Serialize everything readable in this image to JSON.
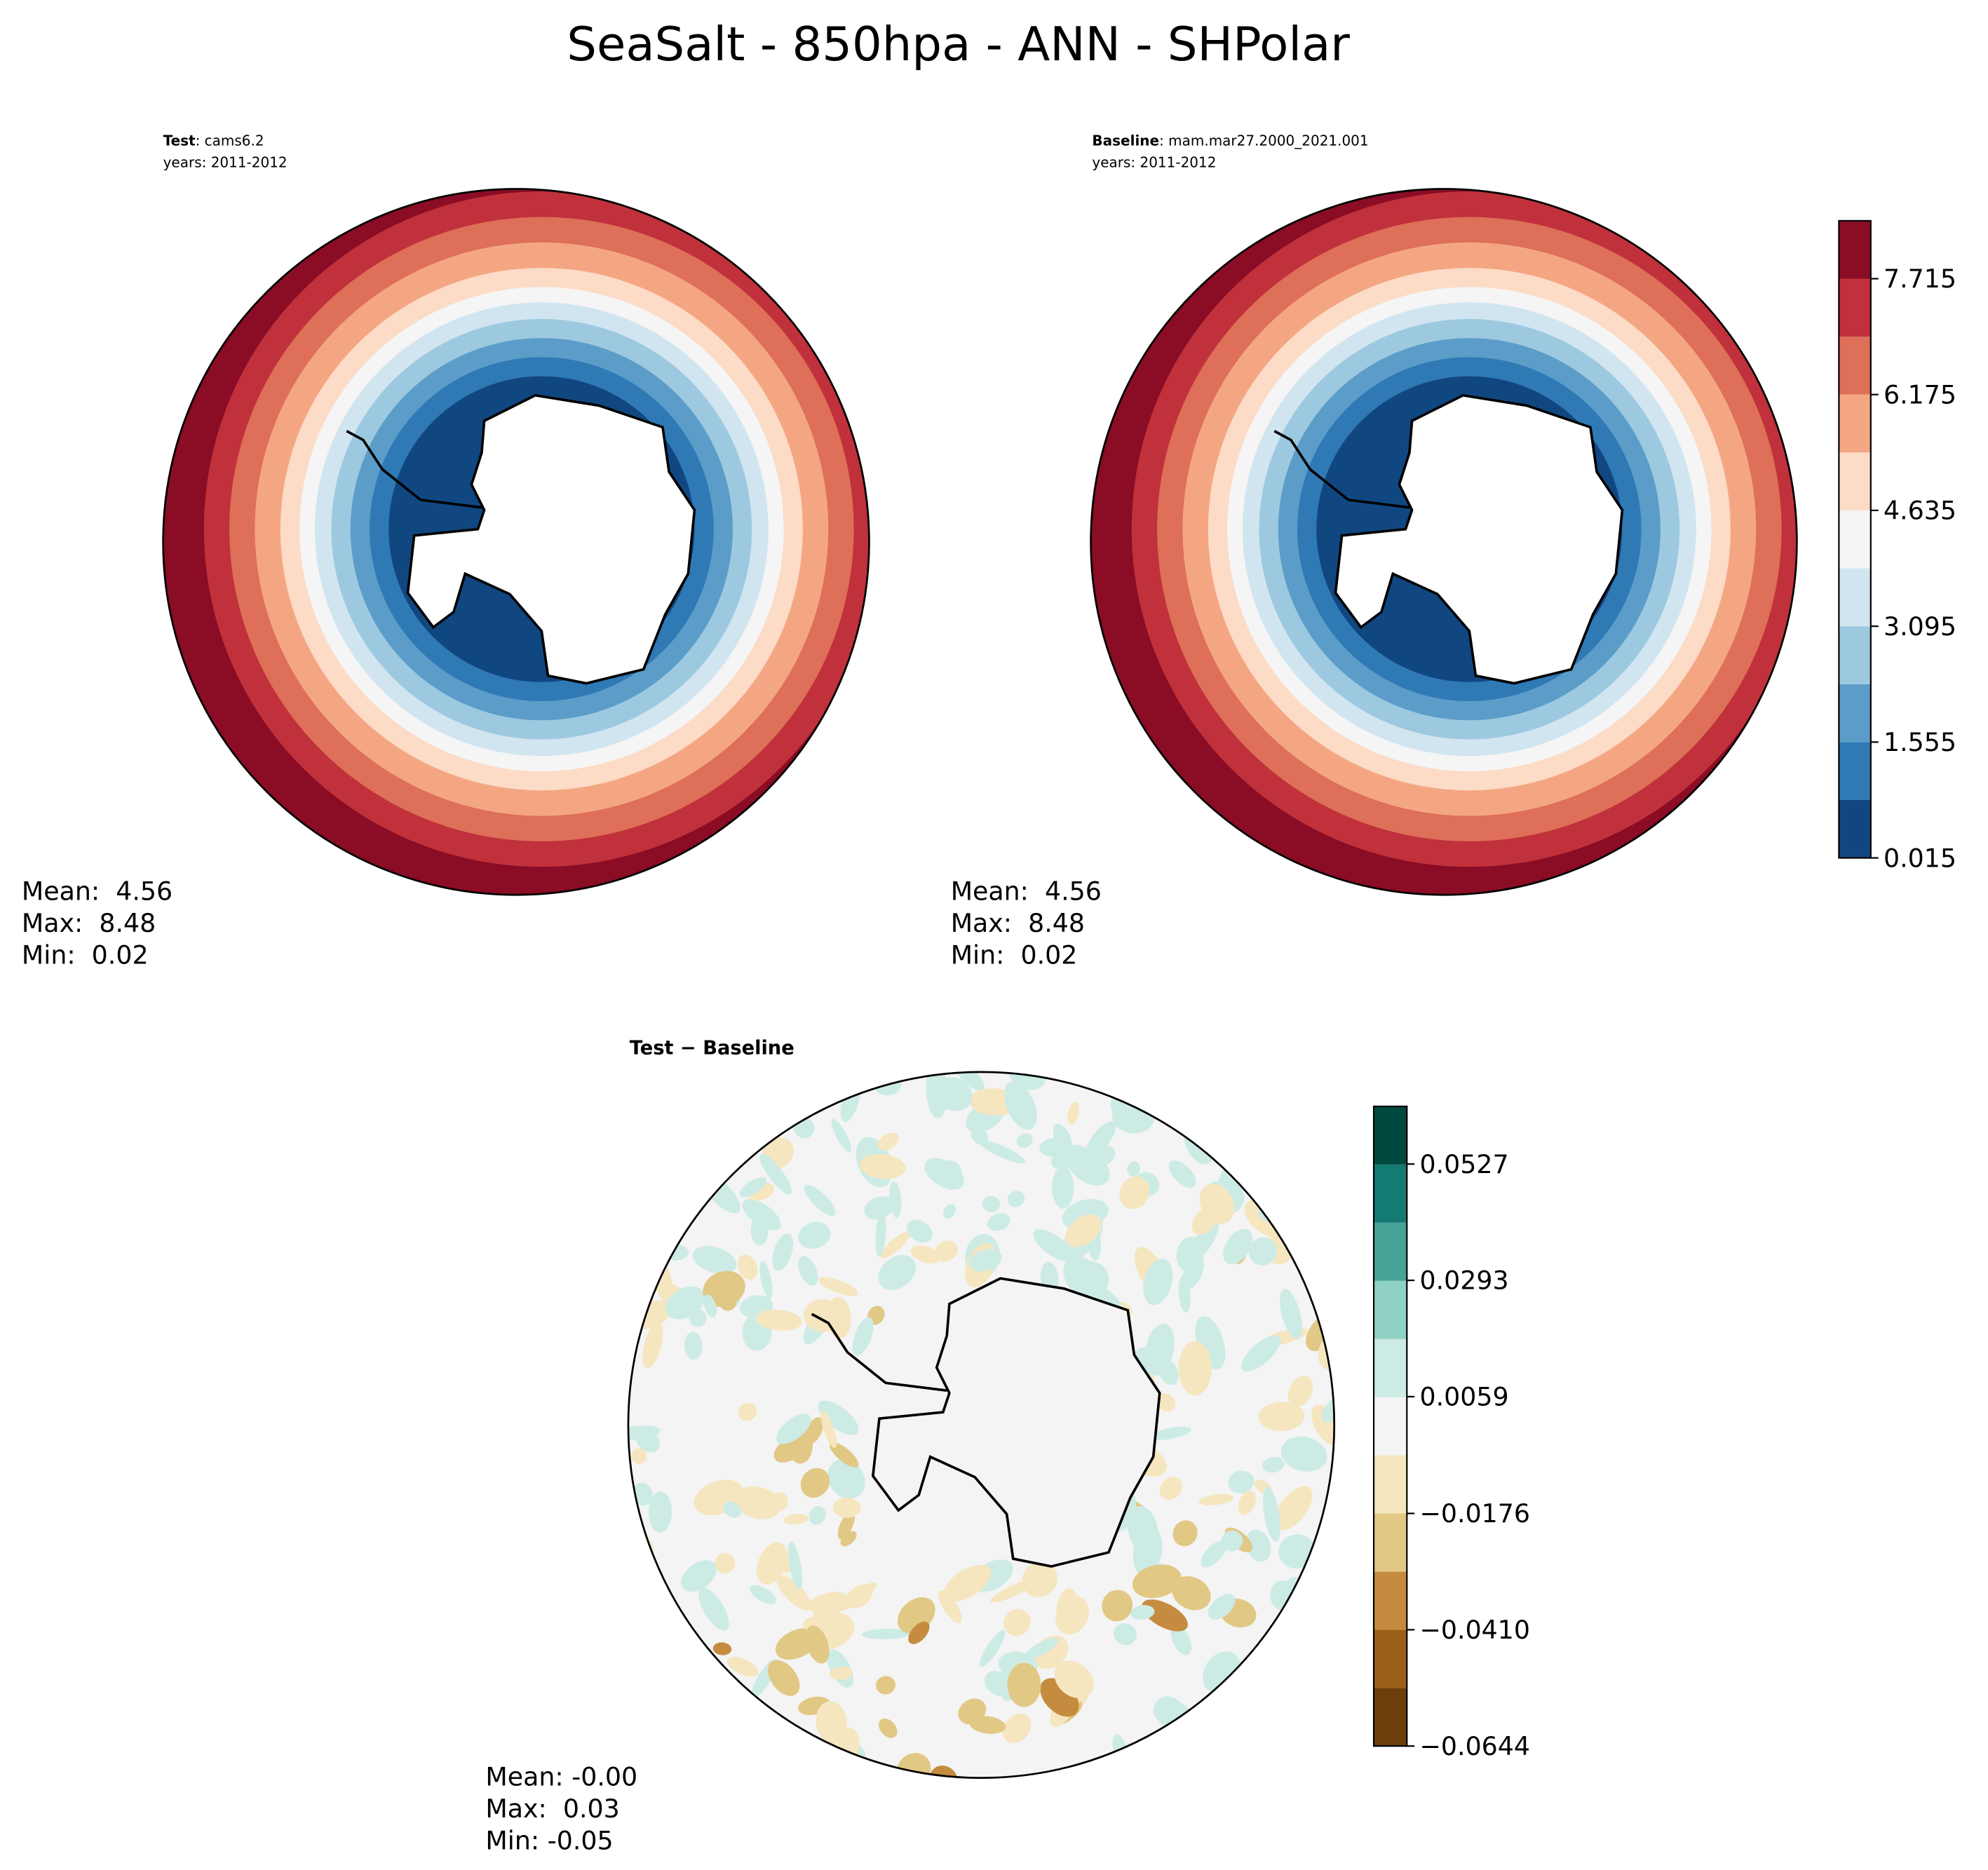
{
  "title": "SeaSalt - 850hpa - ANN - SHPolar",
  "panels": [
    {
      "name": "Test",
      "case": ": cams6.2",
      "years": "years: 2011-2012",
      "stats": [
        "Mean:  4.56",
        "Max:  8.48",
        "Min:  0.02"
      ]
    },
    {
      "name": "Baseline",
      "case": ": mam.mar27.2000_2021.001",
      "years": "years: 2011-2012",
      "stats": [
        "Mean:  4.56",
        "Max:  8.48",
        "Min:  0.02"
      ]
    },
    {
      "name": "Test − Baseline",
      "stats": [
        "Mean: -0.00",
        "Max:  0.03",
        "Min: -0.05"
      ]
    }
  ],
  "colorbars": [
    {
      "lim": [
        0.015,
        8.485
      ],
      "ticks": [
        0.015,
        1.555,
        3.095,
        4.635,
        6.175,
        7.715
      ],
      "colors": [
        "#114781",
        "#2f79b5",
        "#5b9dc8",
        "#9dc9e0",
        "#d1e5f0",
        "#f5f5f5",
        "#fcdbc7",
        "#f4a683",
        "#de6f58",
        "#c0313b",
        "#8a0c25"
      ]
    },
    {
      "lim": [
        -0.0644,
        0.0643
      ],
      "ticks": [
        {
          "value": -0.0644,
          "label": "−0.0644"
        },
        {
          "value": -0.041,
          "label": "−0.0410"
        },
        {
          "value": -0.0176,
          "label": "−0.0176"
        },
        0.0059,
        0.0293,
        0.0527
      ],
      "colors": [
        "#6b3e0a",
        "#9b5e17",
        "#c58c3f",
        "#e2c885",
        "#f5e6bf",
        "#f4f4f4",
        "#cdebe5",
        "#8fd2c4",
        "#47a297",
        "#137b71",
        "#00493f"
      ]
    }
  ]
}
